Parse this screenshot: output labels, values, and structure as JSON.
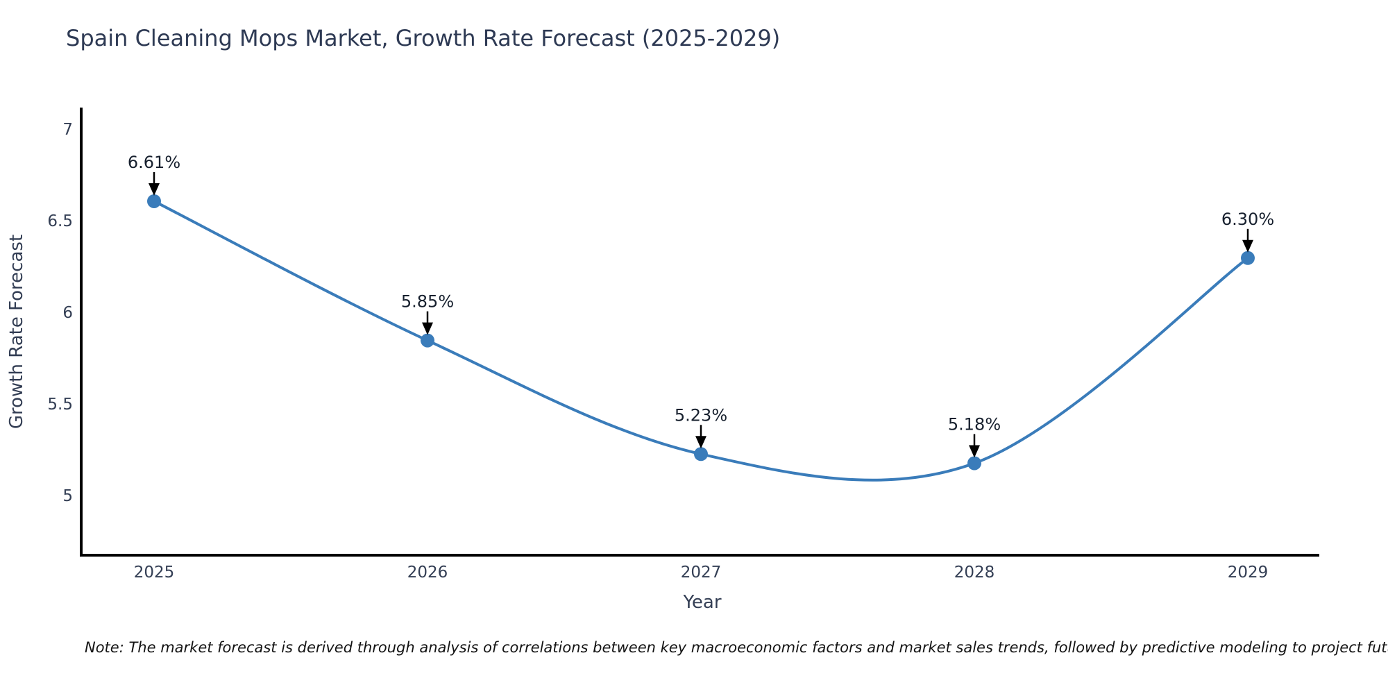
{
  "chart": {
    "title": "Spain Cleaning Mops Market, Growth Rate Forecast (2025-2029)",
    "note": "Note: The market forecast is derived through analysis of correlations between key macroeconomic factors and market sales trends, followed by predictive modeling to project future sales."
  },
  "chart_data": {
    "type": "line",
    "x": [
      2025,
      2026,
      2027,
      2028,
      2029
    ],
    "values": [
      6.61,
      5.85,
      5.23,
      5.18,
      6.3
    ],
    "point_labels": [
      "6.61%",
      "5.85%",
      "5.23%",
      "5.18%",
      "6.30%"
    ],
    "title": "Spain Cleaning Mops Market, Growth Rate Forecast (2025-2029)",
    "xlabel": "Year",
    "ylabel": "Growth Rate Forecast",
    "yticks": [
      5,
      5.5,
      6,
      6.5,
      7
    ],
    "ylim": [
      4.68,
      7.11
    ],
    "xlim": [
      2024.73,
      2029.26
    ],
    "grid": false,
    "legend_position": "none",
    "curve": "smooth-spline",
    "line_color": "#3a7cba",
    "marker_color": "#3a7cba",
    "axis_color": "#000000",
    "tick_color": "#333e54",
    "annotation_text_color": "#17202e",
    "annotation_arrow_color": "#000000"
  }
}
